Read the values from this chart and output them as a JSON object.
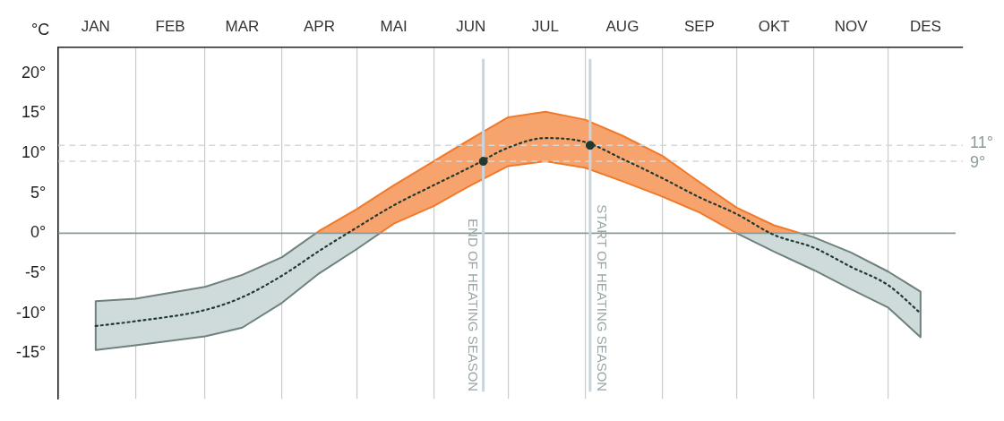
{
  "chart_data": {
    "type": "line",
    "ylabel": "°C",
    "x": [
      "--01-16",
      "--02-01",
      "--03-01",
      "--03-16",
      "--04-01",
      "--04-16",
      "--05-01",
      "--05-16",
      "--06-01",
      "--06-16",
      "--07-01",
      "--07-16",
      "--08-01",
      "--08-16",
      "--09-01",
      "--09-16",
      "--10-01",
      "--10-16",
      "--11-01",
      "--11-16",
      "--12-01",
      "--12-14"
    ],
    "series": [
      {
        "color": "#1f3a33",
        "line_style": "dotted",
        "values": [
          -11.6,
          -11.0,
          -9.6,
          -8.0,
          -5.3,
          -2.2,
          0.7,
          3.5,
          6.0,
          8.3,
          10.7,
          11.9,
          11.4,
          9.3,
          6.9,
          4.5,
          2.4,
          -0.2,
          -1.8,
          -4.2,
          -6.5,
          -10.0
        ],
        "lower": [
          -14.6,
          -14.0,
          -12.9,
          -11.8,
          -8.7,
          -5.0,
          -2.0,
          1.2,
          3.4,
          6.0,
          8.4,
          9.0,
          8.2,
          6.5,
          4.6,
          2.6,
          0,
          -2.3,
          -4.6,
          -7.0,
          -9.3,
          -13.0
        ],
        "upper": [
          -8.5,
          -8.2,
          -6.7,
          -5.2,
          -3.0,
          0.3,
          3.0,
          6.0,
          9.0,
          11.8,
          14.5,
          15.2,
          14.2,
          12.2,
          9.7,
          6.4,
          3.2,
          1.0,
          -0.5,
          -2.4,
          -4.8,
          -7.3
        ]
      },
      {
        "type": "scatter",
        "color": "#1f3a33",
        "marker": "circle",
        "x": [
          "--06-21",
          "--08-03"
        ],
        "values": [
          9,
          11
        ]
      }
    ],
    "xlim": [
      "--01-01",
      "--12-31"
    ],
    "ylim": [
      -20.7,
      23.3
    ],
    "xticks": [
      {
        "value": "--01-01",
        "label": null
      },
      {
        "value": "--01-16",
        "label": "JAN"
      },
      {
        "value": "--02-01",
        "label": null
      },
      {
        "value": "--02-15",
        "label": "FEB"
      },
      {
        "value": "--03-01",
        "label": null
      },
      {
        "value": "--03-16",
        "label": "MAR"
      },
      {
        "value": "--04-01",
        "label": null
      },
      {
        "value": "--04-16",
        "label": "APR"
      },
      {
        "value": "--05-01",
        "label": null
      },
      {
        "value": "--05-16",
        "label": "MAI"
      },
      {
        "value": "--06-01",
        "label": null
      },
      {
        "value": "--06-16",
        "label": "JUN"
      },
      {
        "value": "--07-01",
        "label": null
      },
      {
        "value": "--07-16",
        "label": "JUL"
      },
      {
        "value": "--08-01",
        "label": null
      },
      {
        "value": "--08-16",
        "label": "AUG"
      },
      {
        "value": "--09-01",
        "label": null
      },
      {
        "value": "--09-16",
        "label": "SEP"
      },
      {
        "value": "--10-01",
        "label": null
      },
      {
        "value": "--10-16",
        "label": "OKT"
      },
      {
        "value": "--11-01",
        "label": null
      },
      {
        "value": "--11-16",
        "label": "NOV"
      },
      {
        "value": "--12-01",
        "label": null
      },
      {
        "value": "--12-16",
        "label": "DES"
      }
    ],
    "yticks": [
      {
        "value": -15,
        "label": "-15°"
      },
      {
        "value": -10,
        "label": "-10°"
      },
      {
        "value": -5,
        "label": "-5°"
      },
      {
        "value": 0,
        "label": "0°"
      },
      {
        "value": 5,
        "label": "5°"
      },
      {
        "value": 10,
        "label": "10°"
      },
      {
        "value": 15,
        "label": "15°"
      },
      {
        "value": 20,
        "label": "20°"
      }
    ],
    "grid": "x",
    "ref_lines": [
      {
        "axis": "y",
        "value": 0,
        "color": "#8c9b98",
        "line_style": "solid"
      },
      {
        "axis": "y",
        "value": 11,
        "label": "11°",
        "color": "#d3d9d9",
        "line_style": "dashed"
      },
      {
        "axis": "y",
        "value": 9,
        "label": "9°",
        "color": "#d3d9d9",
        "line_style": "dashed"
      },
      {
        "axis": "x",
        "value": "--06-21",
        "label": "END OF HEATING SEASON",
        "color": "#c8d5dc",
        "line_style": "solid"
      },
      {
        "axis": "x",
        "value": "--08-03",
        "label": "START OF HEATING SEASON",
        "color": "#c8d5dc",
        "line_style": "solid"
      }
    ]
  }
}
